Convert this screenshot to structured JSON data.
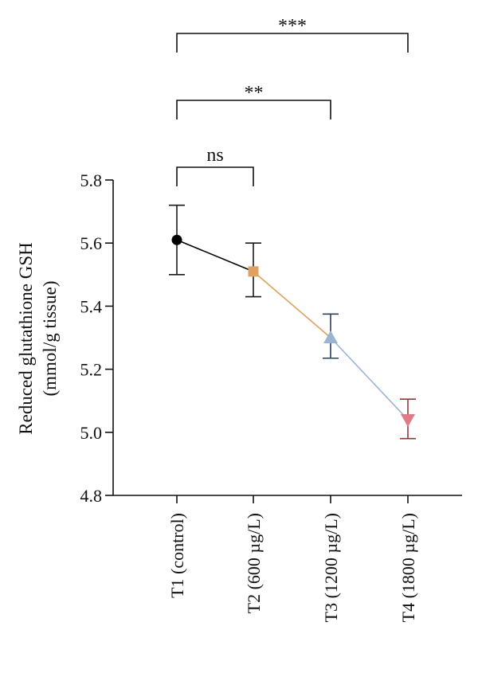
{
  "chart_data": {
    "type": "line",
    "title": "",
    "xlabel": "",
    "ylabel_line1": "Reduced glutathione GSH",
    "ylabel_line2": "(mmol/g tissue)",
    "categories": [
      "T1 (control)",
      "T2 (600 µg/L)",
      "T3 (1200 µg/L)",
      "T4 (1800 µg/L)"
    ],
    "values": [
      5.61,
      5.51,
      5.3,
      5.04
    ],
    "error_upper": [
      5.72,
      5.6,
      5.375,
      5.105
    ],
    "error_lower": [
      5.5,
      5.43,
      5.235,
      4.98
    ],
    "markers": [
      "circle",
      "square",
      "triangle-up",
      "triangle-down"
    ],
    "colors": [
      "#000000",
      "#e0a060",
      "#9ab4d2",
      "#e07a86"
    ],
    "errorbar_colors": [
      "#1a1a1a",
      "#1a1a1a",
      "#2f3d5c",
      "#8f3a3a"
    ],
    "yticks": [
      4.8,
      5.0,
      5.2,
      5.4,
      5.6,
      5.8
    ],
    "ytick_labels": [
      "4.8",
      "5.0",
      "5.2",
      "5.4",
      "5.6",
      "5.8"
    ],
    "ylim": [
      4.8,
      5.8
    ],
    "grid": false,
    "legend": false,
    "significance": [
      {
        "from": 0,
        "to": 1,
        "label": "ns"
      },
      {
        "from": 0,
        "to": 2,
        "label": "**"
      },
      {
        "from": 0,
        "to": 3,
        "label": "***"
      }
    ]
  }
}
